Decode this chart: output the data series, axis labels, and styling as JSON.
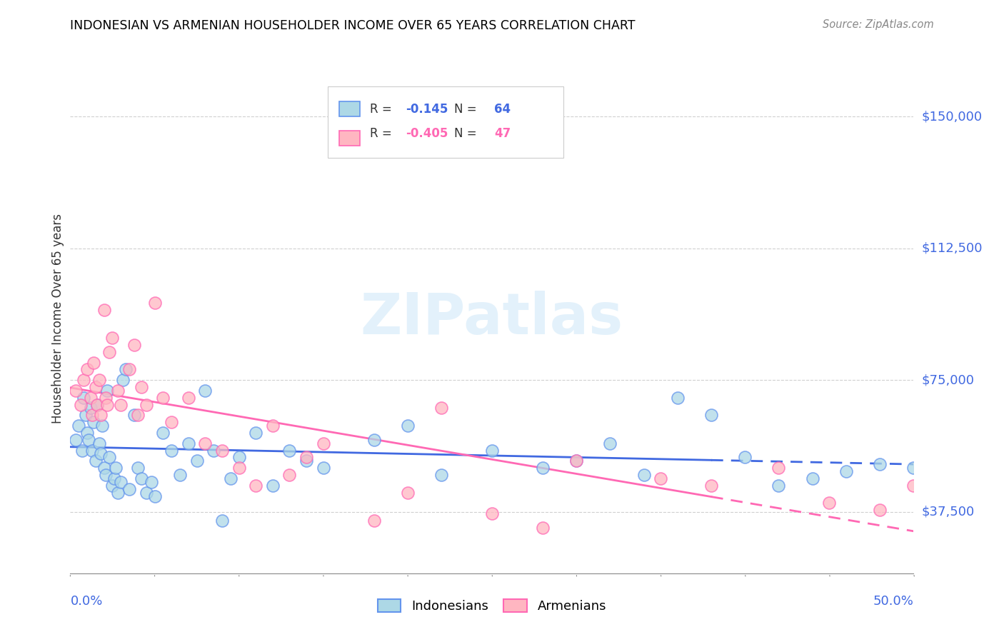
{
  "title": "INDONESIAN VS ARMENIAN HOUSEHOLDER INCOME OVER 65 YEARS CORRELATION CHART",
  "source": "Source: ZipAtlas.com",
  "ylabel": "Householder Income Over 65 years",
  "legend_label1": "Indonesians",
  "legend_label2": "Armenians",
  "R1": "-0.145",
  "N1": "64",
  "R2": "-0.405",
  "N2": "47",
  "ytick_values": [
    37500,
    75000,
    112500,
    150000
  ],
  "ytick_labels": [
    "$37,500",
    "$75,000",
    "$112,500",
    "$150,000"
  ],
  "xmin": 0.0,
  "xmax": 0.5,
  "ymin": 20000,
  "ymax": 165000,
  "color_indonesian_fill": "#ADD8E6",
  "color_indonesian_edge": "#6495ED",
  "color_armenian_fill": "#FFB6C1",
  "color_armenian_edge": "#FF69B4",
  "color_line_indonesian": "#4169E1",
  "color_line_armenian": "#FF69B4",
  "color_axis_labels": "#4169E1",
  "watermark": "ZIPatlas",
  "indonesian_x": [
    0.003,
    0.005,
    0.007,
    0.008,
    0.009,
    0.01,
    0.011,
    0.012,
    0.013,
    0.014,
    0.015,
    0.016,
    0.017,
    0.018,
    0.019,
    0.02,
    0.021,
    0.022,
    0.023,
    0.025,
    0.026,
    0.027,
    0.028,
    0.03,
    0.031,
    0.033,
    0.035,
    0.038,
    0.04,
    0.042,
    0.045,
    0.048,
    0.05,
    0.055,
    0.06,
    0.065,
    0.07,
    0.075,
    0.08,
    0.085,
    0.09,
    0.095,
    0.1,
    0.11,
    0.12,
    0.13,
    0.14,
    0.15,
    0.18,
    0.2,
    0.22,
    0.25,
    0.28,
    0.3,
    0.32,
    0.34,
    0.36,
    0.38,
    0.4,
    0.42,
    0.44,
    0.46,
    0.48,
    0.5
  ],
  "indonesian_y": [
    58000,
    62000,
    55000,
    70000,
    65000,
    60000,
    58000,
    67000,
    55000,
    63000,
    52000,
    68000,
    57000,
    54000,
    62000,
    50000,
    48000,
    72000,
    53000,
    45000,
    47000,
    50000,
    43000,
    46000,
    75000,
    78000,
    44000,
    65000,
    50000,
    47000,
    43000,
    46000,
    42000,
    60000,
    55000,
    48000,
    57000,
    52000,
    72000,
    55000,
    35000,
    47000,
    53000,
    60000,
    45000,
    55000,
    52000,
    50000,
    58000,
    62000,
    48000,
    55000,
    50000,
    52000,
    57000,
    48000,
    70000,
    65000,
    53000,
    45000,
    47000,
    49000,
    51000,
    50000
  ],
  "armenian_x": [
    0.003,
    0.006,
    0.008,
    0.01,
    0.012,
    0.013,
    0.014,
    0.015,
    0.016,
    0.017,
    0.018,
    0.02,
    0.021,
    0.022,
    0.023,
    0.025,
    0.028,
    0.03,
    0.035,
    0.038,
    0.04,
    0.042,
    0.045,
    0.05,
    0.055,
    0.06,
    0.07,
    0.08,
    0.09,
    0.1,
    0.11,
    0.12,
    0.13,
    0.14,
    0.15,
    0.18,
    0.2,
    0.22,
    0.25,
    0.28,
    0.3,
    0.35,
    0.38,
    0.42,
    0.45,
    0.48,
    0.5
  ],
  "armenian_y": [
    72000,
    68000,
    75000,
    78000,
    70000,
    65000,
    80000,
    73000,
    68000,
    75000,
    65000,
    95000,
    70000,
    68000,
    83000,
    87000,
    72000,
    68000,
    78000,
    85000,
    65000,
    73000,
    68000,
    97000,
    70000,
    63000,
    70000,
    57000,
    55000,
    50000,
    45000,
    62000,
    48000,
    53000,
    57000,
    35000,
    43000,
    67000,
    37000,
    33000,
    52000,
    47000,
    45000,
    50000,
    40000,
    38000,
    45000
  ]
}
